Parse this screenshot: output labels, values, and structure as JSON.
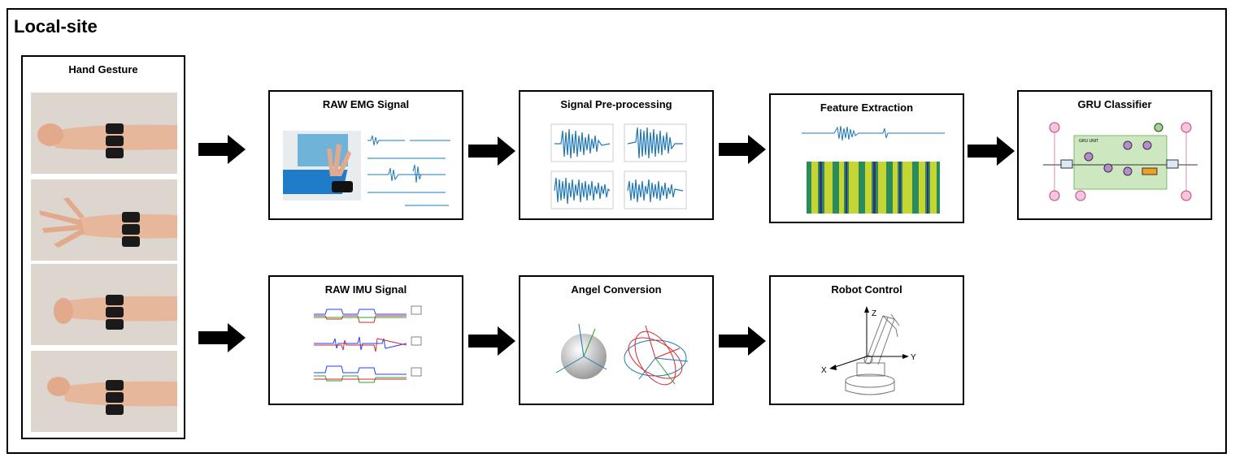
{
  "site_title": "Local-site",
  "gesture_panel": {
    "title": "Hand Gesture"
  },
  "boxes": {
    "raw_emg": "RAW EMG Signal",
    "preprocessing": "Signal Pre-processing",
    "feature_extraction": "Feature Extraction",
    "gru_classifier": "GRU Classifier",
    "raw_imu": "RAW IMU Signal",
    "angle_conversion": "Angel Conversion",
    "robot_control": "Robot Control"
  },
  "gru": {
    "unit_label": "GRU UNIT"
  },
  "robot": {
    "axis_x": "X",
    "axis_y": "Y",
    "axis_z": "Z"
  },
  "colors": {
    "border": "#000000",
    "signal": "#1f77b4",
    "heatmap_a": "#2b8c5a",
    "heatmap_b": "#c5d634",
    "gru_bg": "#cde8c0",
    "gate": "#b98ad0"
  }
}
